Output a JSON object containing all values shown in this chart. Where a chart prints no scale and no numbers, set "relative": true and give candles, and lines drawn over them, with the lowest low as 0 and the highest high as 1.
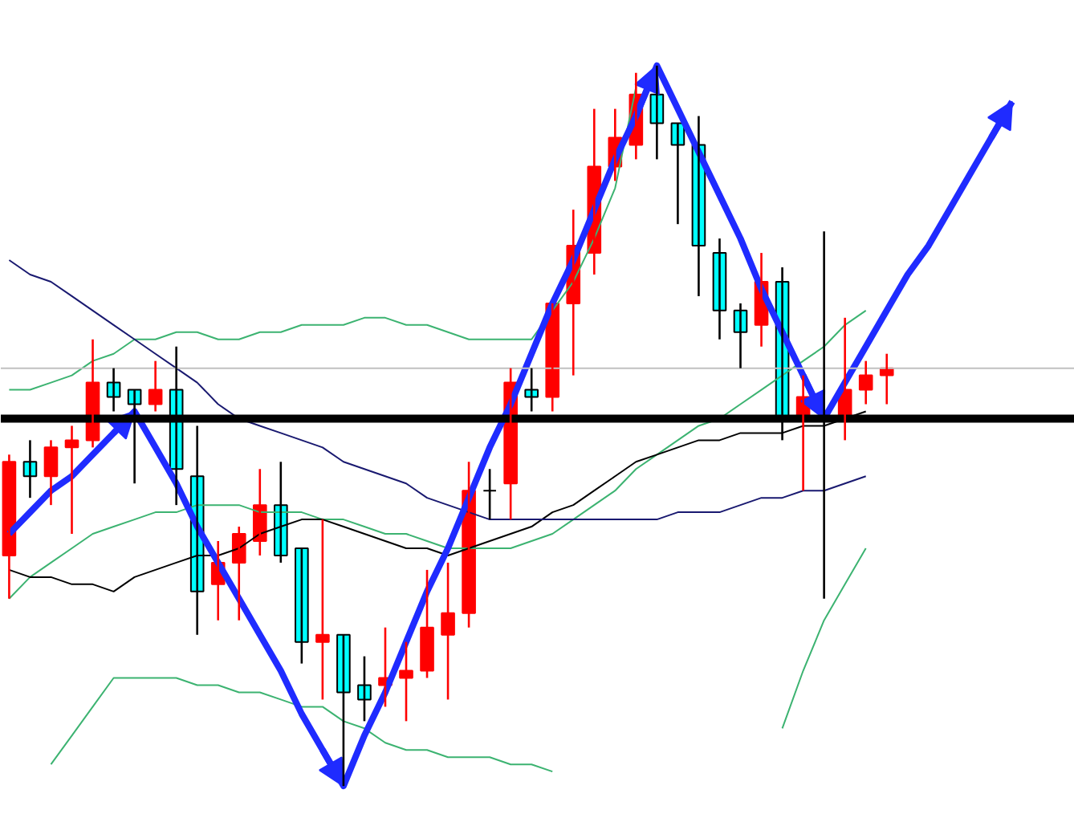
{
  "chart_data": {
    "type": "candlestick",
    "relative": true,
    "grid": false,
    "categories": [
      null,
      null,
      null,
      null,
      null,
      null,
      null,
      null,
      null,
      null,
      null,
      null,
      null,
      null,
      null,
      null,
      null,
      null,
      null,
      null,
      null,
      null,
      null,
      null,
      null,
      null,
      null,
      null,
      null,
      null,
      null,
      null,
      null,
      null,
      null,
      null,
      null,
      null,
      null,
      null,
      null,
      null,
      null,
      null,
      null,
      null,
      null,
      null,
      null
    ],
    "ohlc": [
      [
        0.32,
        0.46,
        0.26,
        0.45
      ],
      [
        0.45,
        0.48,
        0.4,
        0.43
      ],
      [
        0.43,
        0.48,
        0.39,
        0.47
      ],
      [
        0.47,
        0.5,
        0.35,
        0.48
      ],
      [
        0.48,
        0.62,
        0.47,
        0.56
      ],
      [
        0.56,
        0.58,
        0.52,
        0.54
      ],
      [
        0.55,
        0.55,
        0.42,
        0.53
      ],
      [
        0.53,
        0.59,
        0.52,
        0.55
      ],
      [
        0.55,
        0.61,
        0.39,
        0.44
      ],
      [
        0.43,
        0.5,
        0.21,
        0.27
      ],
      [
        0.28,
        0.34,
        0.23,
        0.31
      ],
      [
        0.31,
        0.36,
        0.23,
        0.35
      ],
      [
        0.34,
        0.44,
        0.32,
        0.39
      ],
      [
        0.39,
        0.45,
        0.31,
        0.32
      ],
      [
        0.33,
        0.33,
        0.17,
        0.2
      ],
      [
        0.2,
        0.37,
        0.12,
        0.21
      ],
      [
        0.21,
        0.21,
        0,
        0.13
      ],
      [
        0.14,
        0.18,
        0.09,
        0.12
      ],
      [
        0.14,
        0.22,
        0.11,
        0.15
      ],
      [
        0.15,
        0.2,
        0.09,
        0.16
      ],
      [
        0.16,
        0.3,
        0.15,
        0.22
      ],
      [
        0.21,
        0.31,
        0.12,
        0.24
      ],
      [
        0.24,
        0.45,
        0.22,
        0.41
      ],
      [
        0.41,
        0.44,
        0.37,
        0.41
      ],
      [
        0.42,
        0.58,
        0.37,
        0.56
      ],
      [
        0.55,
        0.58,
        0.52,
        0.54
      ],
      [
        0.54,
        0.67,
        0.52,
        0.67
      ],
      [
        0.67,
        0.8,
        0.57,
        0.75
      ],
      [
        0.74,
        0.94,
        0.71,
        0.86
      ],
      [
        0.86,
        0.94,
        0.84,
        0.9
      ],
      [
        0.89,
        0.99,
        0.87,
        0.96
      ],
      [
        0.96,
        1,
        0.87,
        0.92
      ],
      [
        0.92,
        0.92,
        0.78,
        0.89
      ],
      [
        0.89,
        0.93,
        0.68,
        0.75
      ],
      [
        0.74,
        0.76,
        0.62,
        0.66
      ],
      [
        0.66,
        0.67,
        0.58,
        0.63
      ],
      [
        0.64,
        0.74,
        0.61,
        0.7
      ],
      [
        0.7,
        0.72,
        0.48,
        0.51
      ],
      [
        0.51,
        0.57,
        0.41,
        0.54
      ],
      [
        0.51,
        0.77,
        0.26,
        0.51
      ],
      [
        0.51,
        0.65,
        0.48,
        0.55
      ],
      [
        0.55,
        0.59,
        0.53,
        0.57
      ],
      [
        0.57,
        0.6,
        0.53,
        0.58
      ],
      null,
      null,
      null,
      null,
      null,
      null
    ],
    "colors": [
      "#ff0000",
      "#00ffff",
      "#ff0000",
      "#ff0000",
      "#ff0000",
      "#00ffff",
      "#00ffff",
      "#ff0000",
      "#00ffff",
      "#00ffff",
      "#ff0000",
      "#ff0000",
      "#ff0000",
      "#00ffff",
      "#00ffff",
      "#ff0000",
      "#00ffff",
      "#00ffff",
      "#ff0000",
      "#ff0000",
      "#ff0000",
      "#ff0000",
      "#ff0000",
      "#000000",
      "#ff0000",
      "#00ffff",
      "#ff0000",
      "#ff0000",
      "#ff0000",
      "#ff0000",
      "#ff0000",
      "#00ffff",
      "#00ffff",
      "#00ffff",
      "#00ffff",
      "#00ffff",
      "#ff0000",
      "#00ffff",
      "#ff0000",
      "#000000",
      "#ff0000",
      "#ff0000",
      "#ff0000",
      null,
      null,
      null,
      null,
      null,
      null
    ],
    "series": [
      {
        "type": "line",
        "color": "#3cb371",
        "values": [
          0.55,
          0.55,
          0.56,
          0.57,
          0.59,
          0.6,
          0.62,
          0.62,
          0.63,
          0.63,
          0.62,
          0.62,
          0.63,
          0.63,
          0.64,
          0.64,
          0.64,
          0.65,
          0.65,
          0.64,
          0.64,
          0.63,
          0.62,
          0.62,
          0.62,
          0.62,
          0.66,
          0.7,
          0.76,
          0.83,
          0.97,
          null,
          null,
          null,
          null,
          null,
          null,
          null,
          null,
          null,
          null,
          null,
          null,
          null,
          null,
          null,
          null,
          null,
          null
        ]
      },
      {
        "type": "line",
        "color": "#3cb371",
        "values": [
          0.26,
          0.29,
          0.31,
          0.33,
          0.35,
          0.36,
          0.37,
          0.38,
          0.38,
          0.39,
          0.39,
          0.39,
          0.38,
          0.38,
          0.38,
          0.37,
          0.37,
          0.36,
          0.35,
          0.35,
          0.34,
          0.33,
          0.33,
          0.33,
          0.33,
          0.34,
          0.35,
          0.37,
          0.39,
          0.41,
          0.44,
          0.46,
          0.48,
          0.5,
          0.51,
          0.53,
          0.55,
          0.57,
          0.59,
          0.61,
          0.64,
          0.66,
          null,
          null,
          null,
          null,
          null,
          null,
          null
        ]
      },
      {
        "type": "line",
        "color": "#3cb371",
        "values": [
          null,
          null,
          0.03,
          0.07,
          0.11,
          0.15,
          0.15,
          0.15,
          0.15,
          0.14,
          0.14,
          0.13,
          0.13,
          0.12,
          0.11,
          0.11,
          0.09,
          0.08,
          0.06,
          0.05,
          0.05,
          0.04,
          0.04,
          0.04,
          0.03,
          0.03,
          0.02,
          null,
          null,
          null,
          null,
          null,
          null,
          null,
          null,
          null,
          null,
          0.08,
          0.16,
          0.23,
          0.28,
          0.33,
          null,
          null,
          null,
          null,
          null,
          null,
          null
        ]
      },
      {
        "type": "line",
        "color": "#000000",
        "values": [
          0.3,
          0.29,
          0.29,
          0.28,
          0.28,
          0.27,
          0.29,
          0.3,
          0.31,
          0.32,
          0.32,
          0.33,
          0.35,
          0.36,
          0.37,
          0.37,
          0.36,
          0.35,
          0.34,
          0.33,
          0.33,
          0.32,
          0.33,
          0.34,
          0.35,
          0.36,
          0.38,
          0.39,
          0.41,
          0.43,
          0.45,
          0.46,
          0.47,
          0.48,
          0.48,
          0.49,
          0.49,
          0.49,
          0.5,
          0.5,
          0.51,
          0.52,
          null,
          null,
          null,
          null,
          null,
          null,
          null
        ]
      },
      {
        "type": "line",
        "color": "#191970",
        "values": [
          0.73,
          0.71,
          0.7,
          0.68,
          0.66,
          0.64,
          0.62,
          0.6,
          0.58,
          0.56,
          0.53,
          0.51,
          0.5,
          0.49,
          0.48,
          0.47,
          0.45,
          0.44,
          0.43,
          0.42,
          0.4,
          0.39,
          0.38,
          0.37,
          0.37,
          0.37,
          0.37,
          0.37,
          0.37,
          0.37,
          0.37,
          0.37,
          0.38,
          0.38,
          0.38,
          0.39,
          0.4,
          0.4,
          0.41,
          0.41,
          0.42,
          0.43,
          null,
          null,
          null,
          null,
          null,
          null,
          null
        ]
      },
      {
        "type": "line",
        "color": "#1f2bff",
        "values": [
          0.35,
          0.38,
          0.41,
          0.43,
          0.46,
          0.49,
          0.52,
          0.47,
          0.42,
          0.36,
          0.31,
          0.26,
          0.21,
          0.16,
          0.1,
          0.05,
          0,
          0.07,
          0.13,
          0.2,
          0.27,
          0.33,
          0.4,
          0.47,
          0.53,
          0.6,
          0.67,
          0.73,
          0.8,
          0.87,
          0.93,
          1.0,
          0.94,
          0.88,
          0.82,
          0.76,
          0.69,
          0.63,
          0.57,
          0.51,
          0.56,
          0.61,
          0.66,
          0.71,
          0.75,
          0.8,
          0.85,
          0.9,
          0.95
        ]
      }
    ],
    "ref_lines": [
      {
        "axis": "y",
        "value": 0.58,
        "color": "#c0c0c0"
      },
      {
        "axis": "y",
        "value": 0.51,
        "color": "#000000"
      }
    ]
  }
}
